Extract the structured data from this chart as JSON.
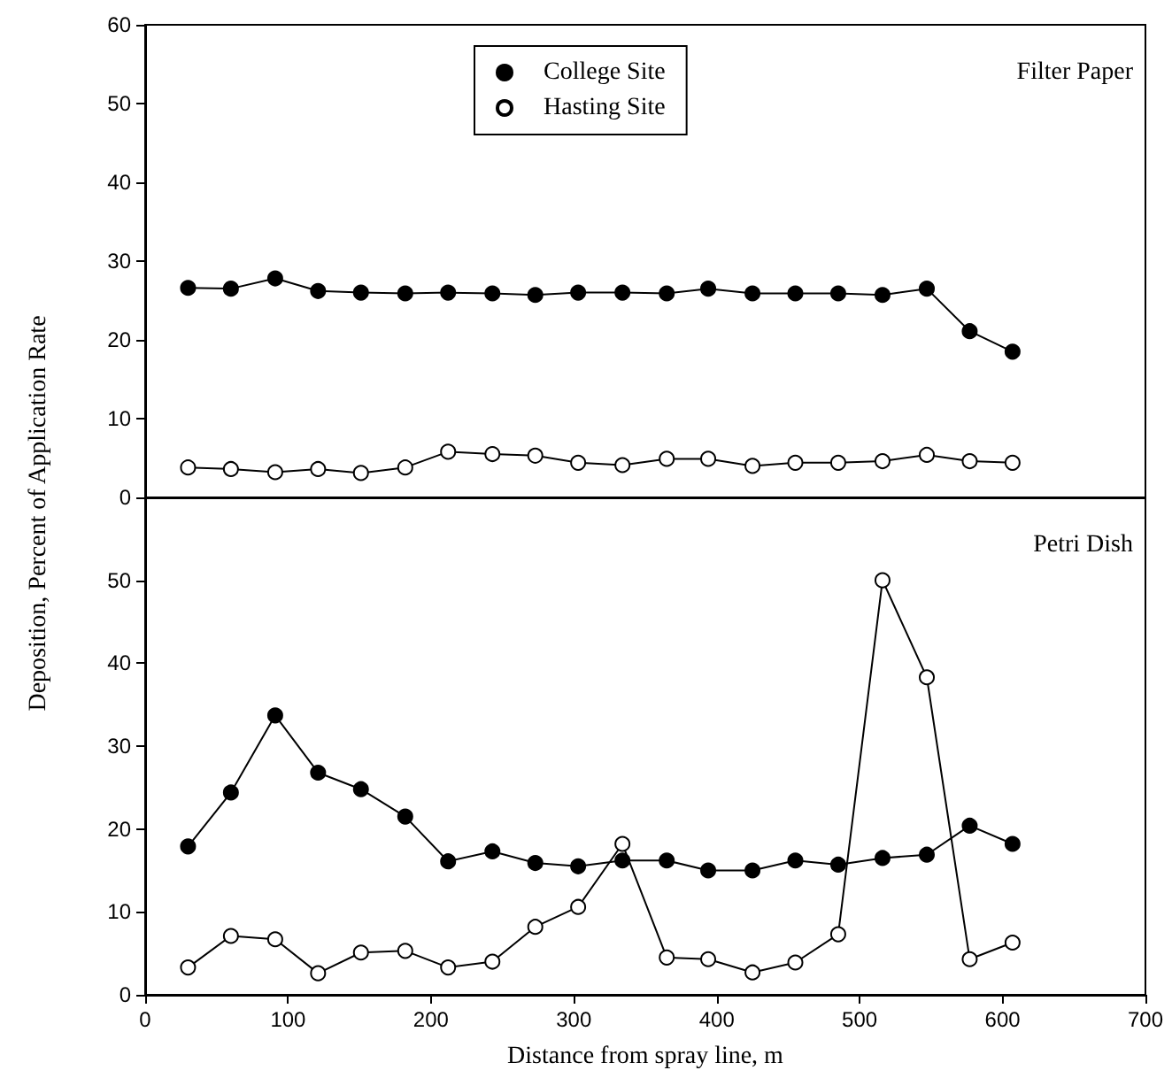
{
  "chart_data": [
    {
      "type": "line",
      "title": "Filter Paper",
      "ylabel": "Deposition, Percent of Application Rate",
      "x": [
        30,
        60,
        91,
        121,
        151,
        182,
        212,
        243,
        273,
        303,
        334,
        365,
        394,
        425,
        455,
        485,
        516,
        547,
        577,
        607
      ],
      "xlim": [
        0,
        700
      ],
      "xticks": [
        0,
        100,
        200,
        300,
        400,
        500,
        600,
        700
      ],
      "ylim": [
        0,
        60
      ],
      "yticks": [
        0,
        10,
        20,
        30,
        40,
        50,
        60
      ],
      "tick_labels": "y",
      "legend": "top",
      "marker": "circle",
      "line_style": "solid",
      "grid": false,
      "series": [
        {
          "name": "College Site",
          "color": "#000000",
          "values": [
            26.6,
            26.5,
            27.8,
            26.2,
            26.0,
            25.9,
            26.0,
            25.9,
            25.7,
            26.0,
            26.0,
            25.9,
            26.5,
            25.9,
            25.9,
            25.9,
            25.7,
            26.5,
            21.1,
            18.5
          ]
        },
        {
          "name": "Hasting Site",
          "color": "#ffffff",
          "values": [
            3.8,
            3.6,
            3.2,
            3.6,
            3.1,
            3.8,
            5.8,
            5.5,
            5.3,
            4.4,
            4.1,
            4.9,
            4.9,
            4.0,
            4.4,
            4.4,
            4.6,
            5.4,
            4.6,
            4.4
          ]
        }
      ]
    },
    {
      "type": "line",
      "title": "Petri Dish",
      "xlabel": "Distance from spray line, m",
      "x": [
        30,
        60,
        91,
        121,
        151,
        182,
        212,
        243,
        273,
        303,
        334,
        365,
        394,
        425,
        455,
        485,
        516,
        547,
        577,
        607
      ],
      "xlim": [
        0,
        700
      ],
      "xticks": [
        0,
        100,
        200,
        300,
        400,
        500,
        600,
        700
      ],
      "ylim": [
        0,
        60
      ],
      "yticks": [
        0,
        10,
        20,
        30,
        40,
        50
      ],
      "marker": "circle",
      "line_style": "solid",
      "grid": false,
      "series": [
        {
          "color": "#000000",
          "values": [
            17.9,
            24.4,
            33.7,
            26.8,
            24.8,
            21.5,
            16.1,
            17.3,
            15.9,
            15.5,
            16.2,
            16.2,
            15.0,
            15.0,
            16.2,
            15.7,
            16.5,
            16.9,
            20.4,
            18.2
          ]
        },
        {
          "color": "#ffffff",
          "values": [
            3.3,
            7.1,
            6.7,
            2.6,
            5.1,
            5.3,
            3.3,
            4.0,
            8.2,
            10.6,
            18.2,
            4.5,
            4.3,
            2.7,
            3.9,
            7.3,
            50,
            38.3,
            4.3,
            6.3
          ]
        }
      ]
    }
  ]
}
